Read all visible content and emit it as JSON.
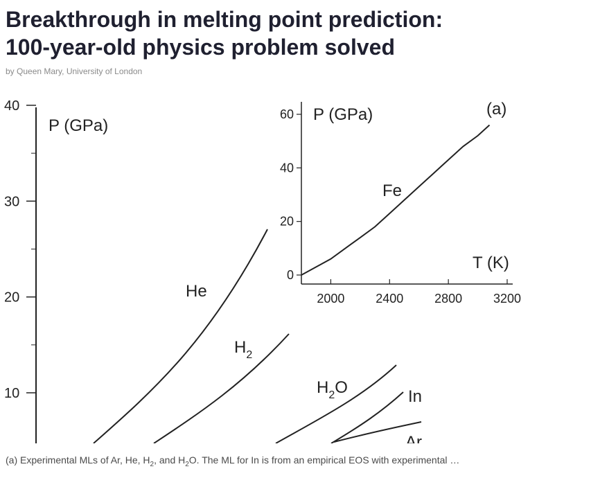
{
  "article": {
    "headline_line1": "Breakthrough in melting point prediction:",
    "headline_line2": "100-year-old physics problem solved",
    "byline": "by Queen Mary, University of London"
  },
  "figure": {
    "caption_parts": [
      "(a) Experimental MLs of Ar, He, H",
      "2",
      ", and H",
      "2",
      "O. The ML for In is from an empirical EOS with experimental …"
    ]
  },
  "chart_data": [
    {
      "type": "line",
      "title": "",
      "ylabel": "P (GPa)",
      "xlabel": "",
      "y_ticks": [
        10,
        20,
        30,
        40
      ],
      "y_tick_labels": [
        "10",
        "20",
        "30",
        "40"
      ],
      "ylim": [
        5,
        40
      ],
      "series": [
        {
          "name": "He",
          "label_main": "He",
          "label_sub": ""
        },
        {
          "name": "H2",
          "label_main": "H",
          "label_sub": "2"
        },
        {
          "name": "H2O",
          "label_main": "H",
          "label_sub": "2",
          "label_tail": "O"
        },
        {
          "name": "In",
          "label_main": "In",
          "label_sub": ""
        },
        {
          "name": "Ar",
          "label_main": "Ar",
          "label_sub": ""
        }
      ]
    },
    {
      "type": "line",
      "title": "",
      "panel_label": "(a)",
      "ylabel": "P (GPa)",
      "xlabel": "T (K)",
      "x_ticks": [
        2000,
        2400,
        2800,
        3200
      ],
      "x_tick_labels": [
        "2000",
        "2400",
        "2800",
        "3200"
      ],
      "y_ticks": [
        0,
        20,
        40,
        60
      ],
      "y_tick_labels": [
        "0",
        "20",
        "40",
        "60"
      ],
      "xlim": [
        1800,
        3200
      ],
      "ylim": [
        -2,
        62
      ],
      "series": [
        {
          "name": "Fe",
          "x": [
            1800,
            1900,
            2000,
            2100,
            2200,
            2300,
            2400,
            2500,
            2600,
            2700,
            2800,
            2900,
            3000,
            3080
          ],
          "y": [
            0,
            3,
            6,
            10,
            14,
            18,
            23,
            28,
            33,
            38,
            43,
            48,
            52,
            56
          ]
        }
      ]
    }
  ]
}
